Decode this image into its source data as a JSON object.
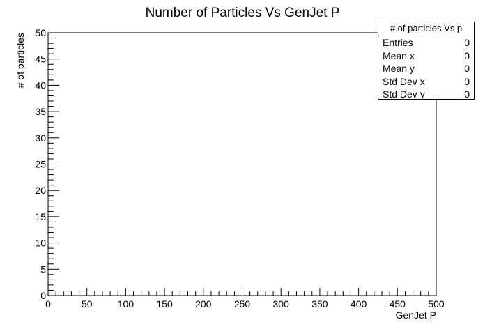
{
  "chart_data": {
    "type": "scatter",
    "title": "Number of Particles Vs GenJet P",
    "xlabel": "GenJet P",
    "ylabel": "# of particles",
    "xlim": [
      0,
      500
    ],
    "ylim": [
      0,
      50
    ],
    "x_major_ticks": [
      0,
      50,
      100,
      150,
      200,
      250,
      300,
      350,
      400,
      450,
      500
    ],
    "y_major_ticks": [
      0,
      5,
      10,
      15,
      20,
      25,
      30,
      35,
      40,
      45,
      50
    ],
    "x_minor_step": 10,
    "y_minor_step": 1,
    "grid": false,
    "points": [],
    "stats_box": {
      "title": "# of particles Vs p",
      "rows": [
        {
          "label": "Entries",
          "value": "0"
        },
        {
          "label": "Mean x",
          "value": "0"
        },
        {
          "label": "Mean y",
          "value": "0"
        },
        {
          "label": "Std Dev x",
          "value": "0"
        },
        {
          "label": "Std Dev y",
          "value": "0"
        }
      ]
    }
  }
}
